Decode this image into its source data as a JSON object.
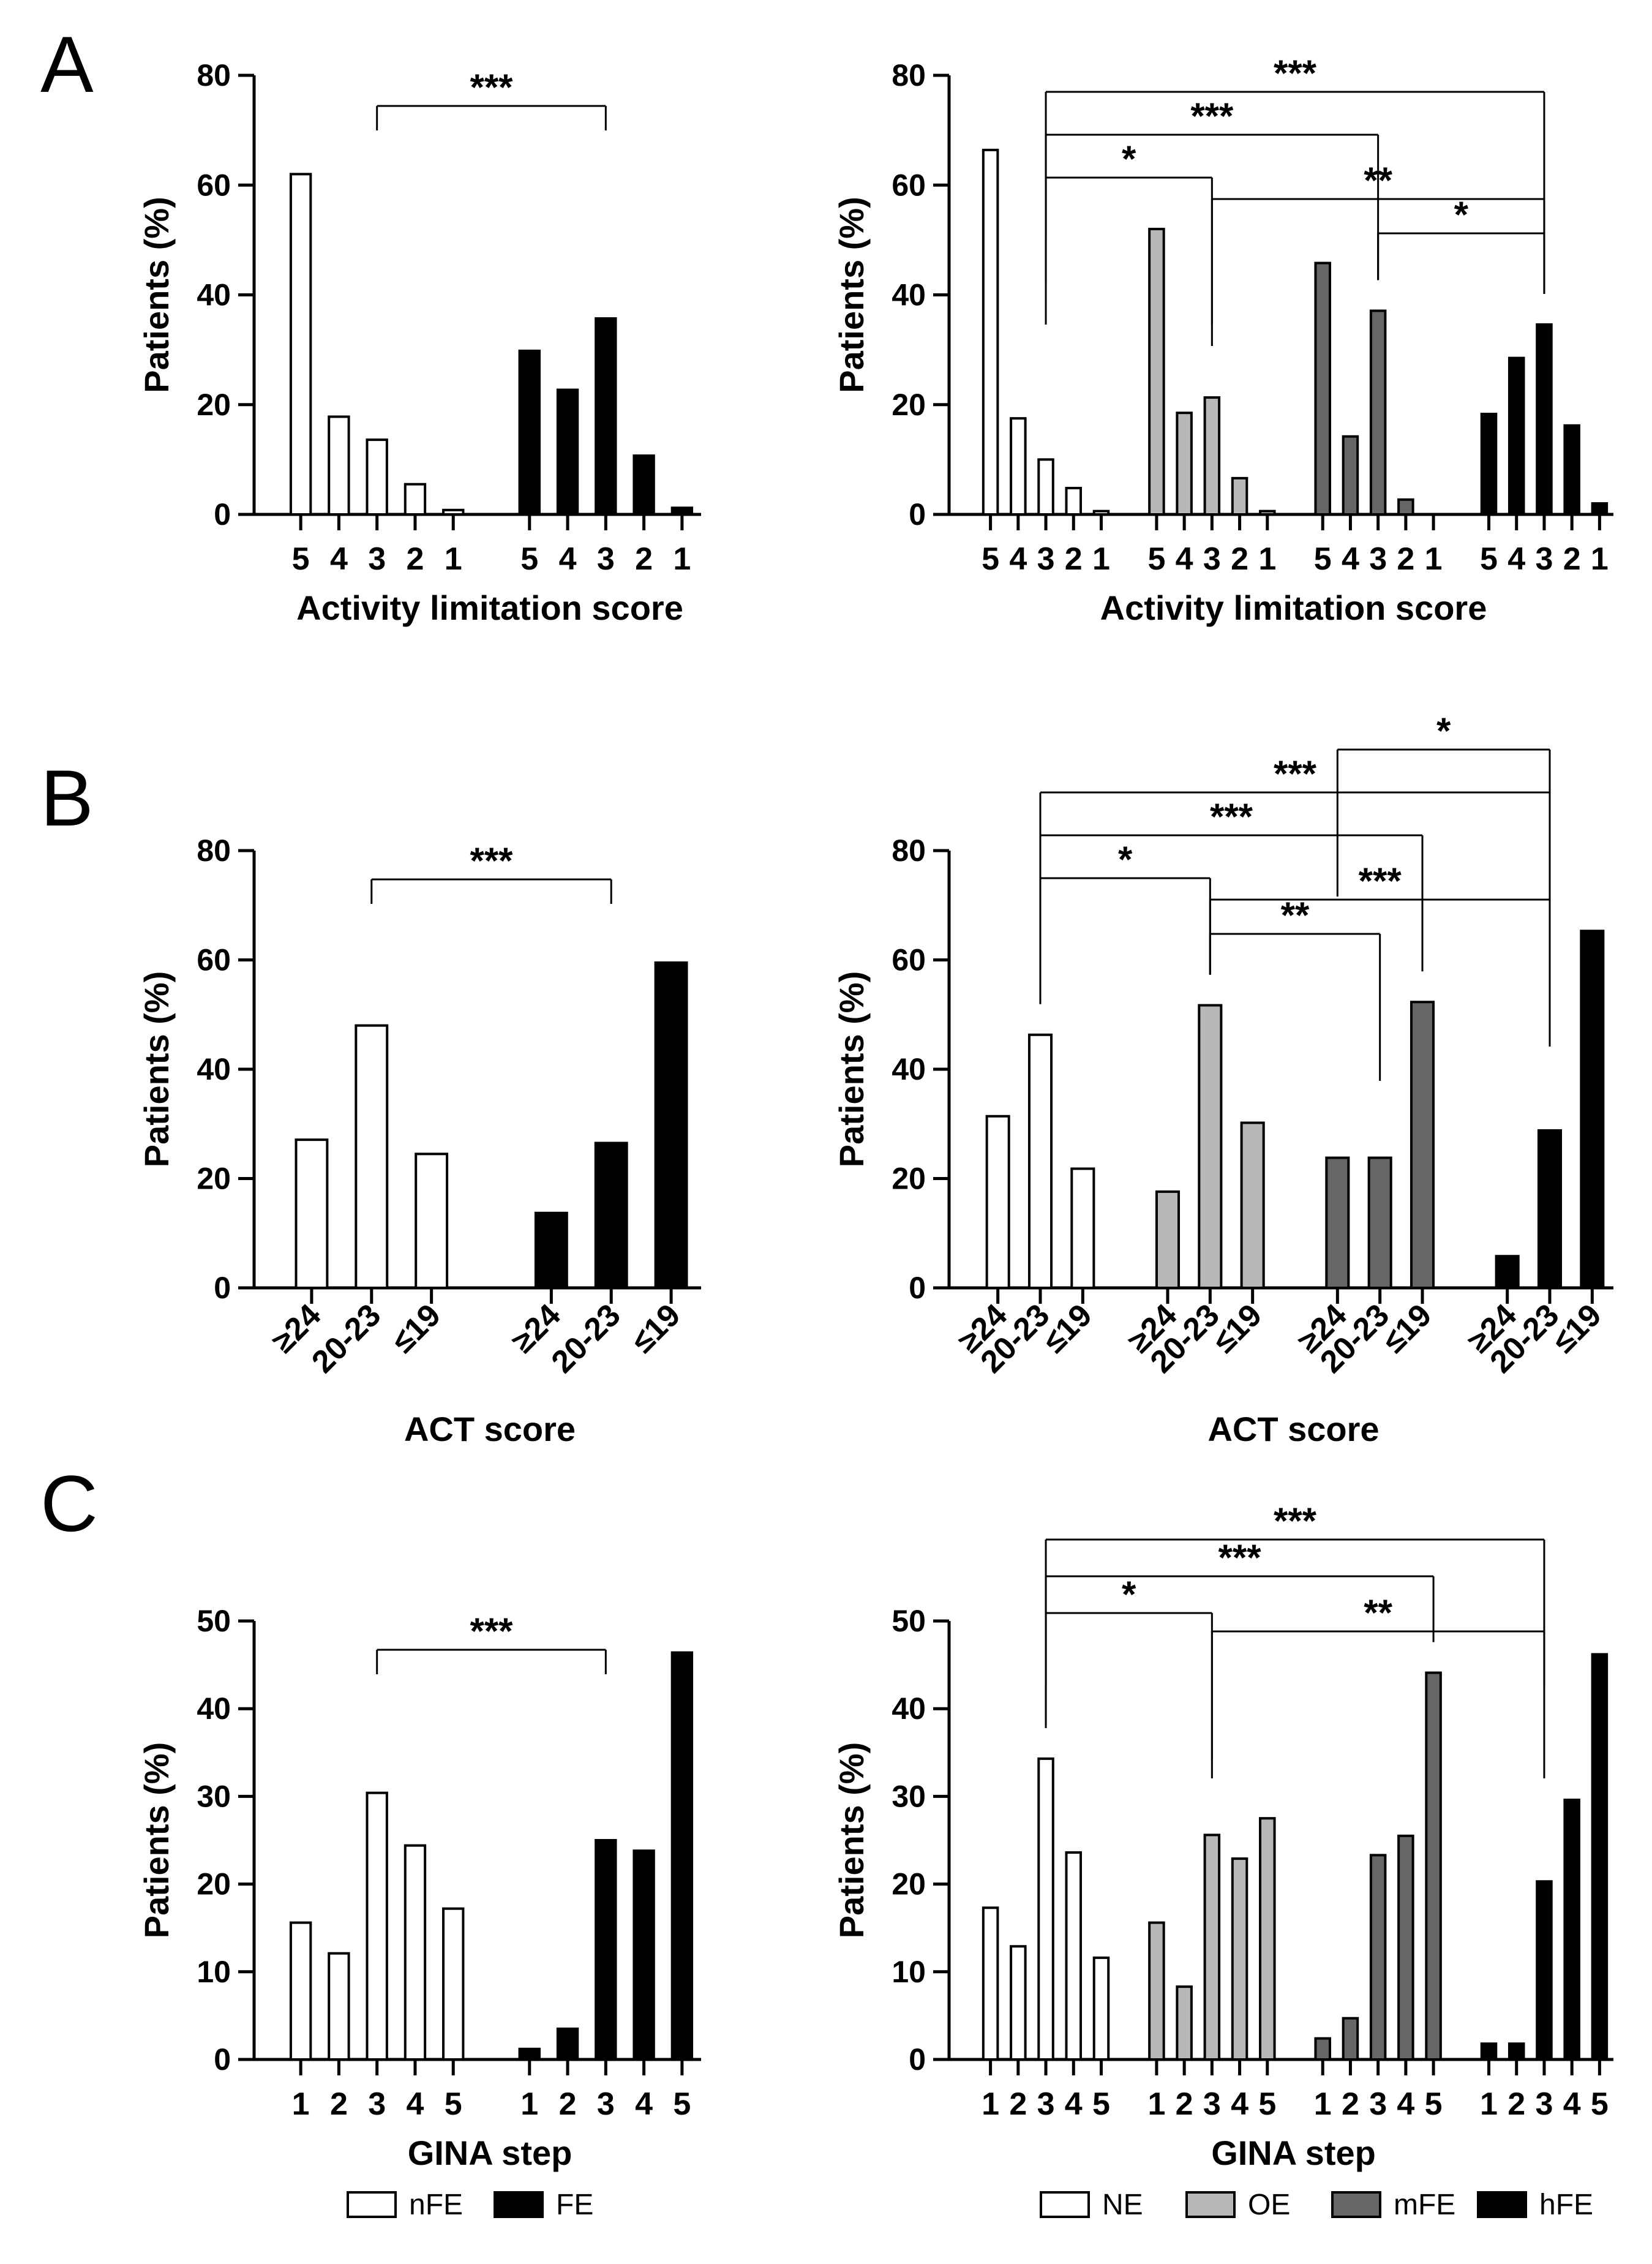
{
  "panels": [
    {
      "letter": "A"
    },
    {
      "letter": "B"
    },
    {
      "letter": "C"
    }
  ],
  "chart_data": [
    {
      "id": "A-left",
      "type": "bar",
      "panel": "A",
      "xlabel": "Activity limitation score",
      "ylabel": "Patients (%)",
      "ylim": [
        0,
        80
      ],
      "yticks": [
        0,
        20,
        40,
        60,
        80
      ],
      "groups": [
        {
          "name": "nFE",
          "color": "#ffffff",
          "categories": [
            "5",
            "4",
            "3",
            "2",
            "1"
          ],
          "values": [
            62,
            17.8,
            13.6,
            5.5,
            0.8
          ]
        },
        {
          "name": "FE",
          "color": "#000000",
          "categories": [
            "5",
            "4",
            "3",
            "2",
            "1"
          ],
          "values": [
            29.8,
            22.7,
            35.7,
            10.7,
            1.2
          ]
        }
      ],
      "significance": [
        {
          "from": [
            0,
            2
          ],
          "to": [
            1,
            2
          ],
          "label": "***",
          "level": 0
        }
      ]
    },
    {
      "id": "A-right",
      "type": "bar",
      "panel": "A",
      "xlabel": "Activity limitation score",
      "ylabel": "Patients (%)",
      "ylim": [
        0,
        80
      ],
      "yticks": [
        0,
        20,
        40,
        60,
        80
      ],
      "groups": [
        {
          "name": "NE",
          "color": "#ffffff",
          "categories": [
            "5",
            "4",
            "3",
            "2",
            "1"
          ],
          "values": [
            66.4,
            17.5,
            10,
            4.8,
            0.6
          ]
        },
        {
          "name": "OE",
          "color": "#b7b7b7",
          "categories": [
            "5",
            "4",
            "3",
            "2",
            "1"
          ],
          "values": [
            52,
            18.5,
            21.3,
            6.6,
            0.6
          ]
        },
        {
          "name": "mFE",
          "color": "#666666",
          "categories": [
            "5",
            "4",
            "3",
            "2",
            "1"
          ],
          "values": [
            45.8,
            14.2,
            37.1,
            2.7,
            0
          ]
        },
        {
          "name": "hFE",
          "color": "#000000",
          "categories": [
            "5",
            "4",
            "3",
            "2",
            "1"
          ],
          "values": [
            18.3,
            28.5,
            34.6,
            16.2,
            2
          ]
        }
      ],
      "significance": [
        {
          "from": [
            0,
            2
          ],
          "to": [
            3,
            2
          ],
          "label": "***",
          "level": 3
        },
        {
          "from": [
            0,
            2
          ],
          "to": [
            2,
            2
          ],
          "label": "***",
          "level": 2
        },
        {
          "from": [
            0,
            2
          ],
          "to": [
            1,
            2
          ],
          "label": "*",
          "level": 1
        },
        {
          "from": [
            1,
            2
          ],
          "to": [
            3,
            2
          ],
          "label": "**",
          "level": 0.5
        },
        {
          "from": [
            2,
            2
          ],
          "to": [
            3,
            2
          ],
          "label": "*",
          "level": -0.3
        }
      ]
    },
    {
      "id": "B-left",
      "type": "bar",
      "panel": "B",
      "xlabel": "ACT score",
      "ylabel": "Patients (%)",
      "ylim": [
        0,
        80
      ],
      "yticks": [
        0,
        20,
        40,
        60,
        80
      ],
      "groups": [
        {
          "name": "nFE",
          "color": "#ffffff",
          "categories": [
            "≥24",
            "20-23",
            "≤19"
          ],
          "values": [
            27.1,
            48,
            24.5
          ]
        },
        {
          "name": "FE",
          "color": "#000000",
          "categories": [
            "≥24",
            "20-23",
            "≤19"
          ],
          "values": [
            13.7,
            26.5,
            59.5
          ]
        }
      ],
      "significance": [
        {
          "from": [
            0,
            1
          ],
          "to": [
            1,
            1
          ],
          "label": "***",
          "level": 0
        }
      ]
    },
    {
      "id": "B-right",
      "type": "bar",
      "panel": "B",
      "xlabel": "ACT score",
      "ylabel": "Patients (%)",
      "ylim": [
        0,
        80
      ],
      "yticks": [
        0,
        20,
        40,
        60,
        80
      ],
      "groups": [
        {
          "name": "NE",
          "color": "#ffffff",
          "categories": [
            "≥24",
            "20-23",
            "≤19"
          ],
          "values": [
            31.4,
            46.3,
            21.8
          ]
        },
        {
          "name": "OE",
          "color": "#b7b7b7",
          "categories": [
            "≥24",
            "20-23",
            "≤19"
          ],
          "values": [
            17.6,
            51.7,
            30.2
          ]
        },
        {
          "name": "mFE",
          "color": "#666666",
          "categories": [
            "≥24",
            "20-23",
            "≤19"
          ],
          "values": [
            23.8,
            23.8,
            52.3
          ]
        },
        {
          "name": "hFE",
          "color": "#000000",
          "categories": [
            "≥24",
            "20-23",
            "≤19"
          ],
          "values": [
            5.8,
            28.8,
            65.3
          ]
        }
      ],
      "significance": [
        {
          "from": [
            2,
            0
          ],
          "to": [
            3,
            1
          ],
          "label": "*",
          "level": 4
        },
        {
          "from": [
            0,
            1
          ],
          "to": [
            3,
            1
          ],
          "label": "***",
          "level": 3
        },
        {
          "from": [
            0,
            1
          ],
          "to": [
            2,
            2
          ],
          "label": "***",
          "level": 2
        },
        {
          "from": [
            0,
            1
          ],
          "to": [
            1,
            1
          ],
          "label": "*",
          "level": 1
        },
        {
          "from": [
            1,
            1
          ],
          "to": [
            3,
            1
          ],
          "label": "***",
          "level": 0.5
        },
        {
          "from": [
            1,
            1
          ],
          "to": [
            2,
            1
          ],
          "label": "**",
          "level": -0.3
        }
      ]
    },
    {
      "id": "C-left",
      "type": "bar",
      "panel": "C",
      "xlabel": "GINA step",
      "ylabel": "Patients (%)",
      "ylim": [
        0,
        50
      ],
      "yticks": [
        0,
        10,
        20,
        30,
        40,
        50
      ],
      "groups": [
        {
          "name": "nFE",
          "color": "#ffffff",
          "categories": [
            "1",
            "2",
            "3",
            "4",
            "5"
          ],
          "values": [
            15.6,
            12.1,
            30.4,
            24.4,
            17.2
          ]
        },
        {
          "name": "FE",
          "color": "#000000",
          "categories": [
            "1",
            "2",
            "3",
            "4",
            "5"
          ],
          "values": [
            1.2,
            3.5,
            25,
            23.8,
            46.4
          ]
        }
      ],
      "significance": [
        {
          "from": [
            0,
            2
          ],
          "to": [
            1,
            2
          ],
          "label": "***",
          "level": 0
        }
      ]
    },
    {
      "id": "C-right",
      "type": "bar",
      "panel": "C",
      "xlabel": "GINA step",
      "ylabel": "Patients (%)",
      "ylim": [
        0,
        50
      ],
      "yticks": [
        0,
        10,
        20,
        30,
        40,
        50
      ],
      "groups": [
        {
          "name": "NE",
          "color": "#ffffff",
          "categories": [
            "1",
            "2",
            "3",
            "4",
            "5"
          ],
          "values": [
            17.3,
            12.9,
            34.3,
            23.6,
            11.6
          ]
        },
        {
          "name": "OE",
          "color": "#b7b7b7",
          "categories": [
            "1",
            "2",
            "3",
            "4",
            "5"
          ],
          "values": [
            15.6,
            8.3,
            25.6,
            22.9,
            27.5
          ]
        },
        {
          "name": "mFE",
          "color": "#666666",
          "categories": [
            "1",
            "2",
            "3",
            "4",
            "5"
          ],
          "values": [
            2.4,
            4.7,
            23.3,
            25.5,
            44.1
          ]
        },
        {
          "name": "hFE",
          "color": "#000000",
          "categories": [
            "1",
            "2",
            "3",
            "4",
            "5"
          ],
          "values": [
            1.8,
            1.8,
            20.3,
            29.6,
            46.2
          ]
        }
      ],
      "significance": [
        {
          "from": [
            0,
            2
          ],
          "to": [
            3,
            2
          ],
          "label": "***",
          "level": 3
        },
        {
          "from": [
            0,
            2
          ],
          "to": [
            2,
            4
          ],
          "label": "***",
          "level": 2
        },
        {
          "from": [
            0,
            2
          ],
          "to": [
            1,
            2
          ],
          "label": "*",
          "level": 1
        },
        {
          "from": [
            1,
            2
          ],
          "to": [
            3,
            2
          ],
          "label": "**",
          "level": 0.5
        }
      ]
    }
  ],
  "legends": {
    "left": [
      {
        "name": "nFE",
        "color": "#ffffff"
      },
      {
        "name": "FE",
        "color": "#000000"
      }
    ],
    "right": [
      {
        "name": "NE",
        "color": "#ffffff"
      },
      {
        "name": "OE",
        "color": "#b7b7b7"
      },
      {
        "name": "mFE",
        "color": "#666666"
      },
      {
        "name": "hFE",
        "color": "#000000"
      }
    ]
  }
}
